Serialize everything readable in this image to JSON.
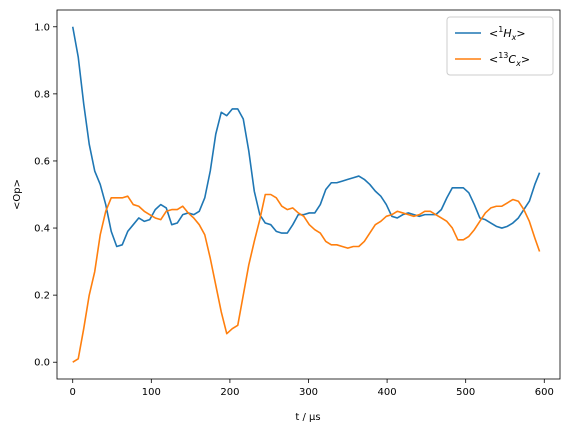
{
  "chart_data": {
    "type": "line",
    "xlabel": "t / μs",
    "ylabel": "<Op>",
    "xlim": [
      -20,
      620
    ],
    "ylim": [
      -0.05,
      1.05
    ],
    "xticks": [
      0,
      100,
      200,
      300,
      400,
      500,
      600
    ],
    "yticks": [
      0.0,
      0.2,
      0.4,
      0.6,
      0.8,
      1.0
    ],
    "xtick_labels": [
      "0",
      "100",
      "200",
      "300",
      "400",
      "500",
      "600"
    ],
    "ytick_labels": [
      "0.0",
      "0.2",
      "0.4",
      "0.6",
      "0.8",
      "1.0"
    ],
    "grid": false,
    "legend_position": "top-right",
    "series": [
      {
        "name_parts": [
          "<",
          "1",
          "H",
          "x",
          ">"
        ],
        "color": "#1f77b4",
        "x": [
          0,
          7,
          14,
          21,
          28,
          35,
          42,
          49,
          56,
          63,
          70,
          77,
          84,
          91,
          98,
          105,
          112,
          119,
          126,
          133,
          140,
          147,
          154,
          161,
          168,
          175,
          182,
          189,
          196,
          203,
          210,
          217,
          224,
          231,
          238,
          245,
          252,
          259,
          266,
          273,
          280,
          287,
          294,
          301,
          308,
          315,
          322,
          329,
          336,
          343,
          350,
          357,
          364,
          371,
          378,
          385,
          392,
          399,
          406,
          413,
          420,
          427,
          434,
          441,
          448,
          455,
          462,
          469,
          476,
          483,
          490,
          497,
          504,
          511,
          518,
          525,
          532,
          539,
          546,
          553,
          560,
          567,
          574,
          581,
          588,
          594
        ],
        "y": [
          1.0,
          0.91,
          0.77,
          0.65,
          0.57,
          0.53,
          0.47,
          0.39,
          0.345,
          0.35,
          0.39,
          0.41,
          0.43,
          0.42,
          0.425,
          0.455,
          0.47,
          0.46,
          0.41,
          0.415,
          0.44,
          0.445,
          0.44,
          0.45,
          0.49,
          0.57,
          0.68,
          0.745,
          0.735,
          0.755,
          0.755,
          0.725,
          0.63,
          0.51,
          0.44,
          0.415,
          0.41,
          0.39,
          0.385,
          0.385,
          0.41,
          0.44,
          0.44,
          0.445,
          0.445,
          0.47,
          0.515,
          0.535,
          0.535,
          0.54,
          0.545,
          0.55,
          0.555,
          0.545,
          0.53,
          0.51,
          0.495,
          0.47,
          0.435,
          0.43,
          0.44,
          0.445,
          0.44,
          0.435,
          0.44,
          0.44,
          0.44,
          0.455,
          0.49,
          0.52,
          0.52,
          0.52,
          0.505,
          0.47,
          0.43,
          0.425,
          0.415,
          0.405,
          0.4,
          0.405,
          0.415,
          0.43,
          0.455,
          0.48,
          0.53,
          0.565
        ]
      },
      {
        "name_parts": [
          "<",
          "13",
          "C",
          "x",
          ">"
        ],
        "color": "#ff7f0e",
        "x": [
          0,
          7,
          14,
          21,
          28,
          35,
          42,
          49,
          56,
          63,
          70,
          77,
          84,
          91,
          98,
          105,
          112,
          119,
          126,
          133,
          140,
          147,
          154,
          161,
          168,
          175,
          182,
          189,
          196,
          203,
          210,
          217,
          224,
          231,
          238,
          245,
          252,
          259,
          266,
          273,
          280,
          287,
          294,
          301,
          308,
          315,
          322,
          329,
          336,
          343,
          350,
          357,
          364,
          371,
          378,
          385,
          392,
          399,
          406,
          413,
          420,
          427,
          434,
          441,
          448,
          455,
          462,
          469,
          476,
          483,
          490,
          497,
          504,
          511,
          518,
          525,
          532,
          539,
          546,
          553,
          560,
          567,
          574,
          581,
          588,
          594
        ],
        "y": [
          0.0,
          0.01,
          0.1,
          0.2,
          0.27,
          0.38,
          0.45,
          0.49,
          0.49,
          0.49,
          0.495,
          0.47,
          0.465,
          0.45,
          0.44,
          0.43,
          0.425,
          0.45,
          0.455,
          0.455,
          0.465,
          0.445,
          0.43,
          0.41,
          0.38,
          0.31,
          0.23,
          0.15,
          0.085,
          0.1,
          0.11,
          0.2,
          0.29,
          0.36,
          0.425,
          0.5,
          0.5,
          0.49,
          0.465,
          0.455,
          0.46,
          0.445,
          0.435,
          0.41,
          0.395,
          0.385,
          0.36,
          0.35,
          0.35,
          0.345,
          0.34,
          0.345,
          0.345,
          0.36,
          0.385,
          0.41,
          0.42,
          0.435,
          0.44,
          0.45,
          0.445,
          0.44,
          0.435,
          0.44,
          0.45,
          0.45,
          0.44,
          0.43,
          0.42,
          0.4,
          0.365,
          0.365,
          0.375,
          0.395,
          0.42,
          0.445,
          0.46,
          0.465,
          0.465,
          0.475,
          0.485,
          0.48,
          0.455,
          0.42,
          0.37,
          0.33
        ]
      }
    ]
  }
}
